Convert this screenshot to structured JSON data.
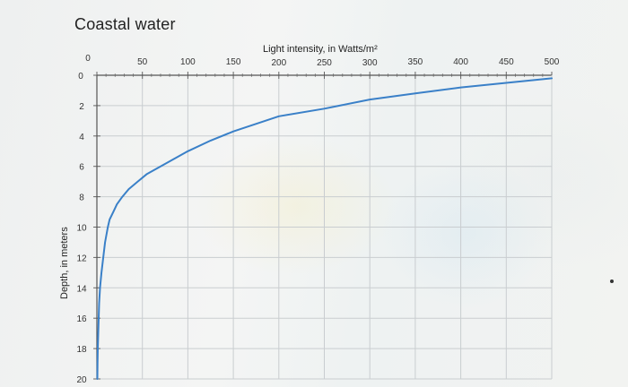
{
  "chart_data": {
    "type": "line",
    "title": "Coastal water",
    "xlabel": "Light intensity, in Watts/m²",
    "ylabel": "Depth, in meters",
    "xlim": [
      0,
      500
    ],
    "ylim": [
      0,
      20
    ],
    "x_ticks": [
      0,
      50,
      100,
      150,
      200,
      250,
      300,
      350,
      400,
      450,
      500
    ],
    "y_ticks": [
      0,
      2,
      4,
      6,
      8,
      10,
      12,
      14,
      16,
      18,
      20
    ],
    "x_axis_position": "top",
    "y_inverted": true,
    "grid": true,
    "series": [
      {
        "color": "#3a80c8",
        "points": [
          [
            500,
            0.2
          ],
          [
            450,
            0.5
          ],
          [
            400,
            0.8
          ],
          [
            350,
            1.2
          ],
          [
            300,
            1.6
          ],
          [
            250,
            2.2
          ],
          [
            200,
            2.7
          ],
          [
            170,
            3.3
          ],
          [
            150,
            3.7
          ],
          [
            125,
            4.3
          ],
          [
            100,
            5.0
          ],
          [
            85,
            5.5
          ],
          [
            70,
            6.0
          ],
          [
            55,
            6.5
          ],
          [
            45,
            7.0
          ],
          [
            35,
            7.5
          ],
          [
            28,
            8.0
          ],
          [
            22,
            8.5
          ],
          [
            18,
            9.0
          ],
          [
            14,
            9.5
          ],
          [
            12,
            10.0
          ],
          [
            9,
            11.0
          ],
          [
            7,
            12.0
          ],
          [
            5,
            13.0
          ],
          [
            3.5,
            14.0
          ],
          [
            2.5,
            15.0
          ],
          [
            2,
            16.0
          ],
          [
            1.5,
            17.0
          ],
          [
            1,
            18.0
          ],
          [
            0.7,
            19.0
          ],
          [
            0.5,
            20.0
          ]
        ]
      }
    ]
  }
}
